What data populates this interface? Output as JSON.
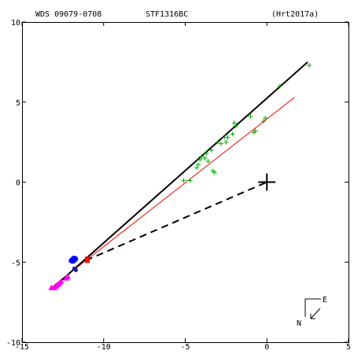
{
  "header": {
    "wds": "WDS 09079-0708",
    "name": "STF1316BC",
    "ref": "(Hrt2017a)"
  },
  "compass": {
    "east": "E",
    "north": "N"
  },
  "chart_data": {
    "type": "scatter",
    "xlim": [
      -15,
      5
    ],
    "ylim": [
      -10,
      10
    ],
    "x_ticks": [
      -15,
      -10,
      -5,
      0,
      5
    ],
    "y_ticks": [
      -10,
      -5,
      0,
      5,
      10
    ],
    "x_tick_labels": [
      "-15",
      "-10",
      "-5",
      "0",
      "5"
    ],
    "y_tick_labels": [
      "-10",
      "-5",
      "0",
      "5",
      "10"
    ],
    "grid": false,
    "colors": {
      "black": "#000000",
      "red": "#ff0000",
      "green": "#00aa00",
      "blue": "#0000ff",
      "magenta": "#ff00ff"
    },
    "primary": [
      0,
      0
    ],
    "black_line": [
      [
        -13.1,
        -6.6
      ],
      [
        2.5,
        7.5
      ]
    ],
    "red_line": [
      [
        -13.1,
        -6.5
      ],
      [
        1.7,
        5.3
      ]
    ],
    "dashed_line": [
      [
        -11.1,
        -4.9
      ],
      [
        0,
        0
      ]
    ],
    "green_points": [
      [
        -5.1,
        0.1
      ],
      [
        -4.7,
        0.1
      ],
      [
        -4.3,
        0.9
      ],
      [
        -4.2,
        1.1
      ],
      [
        -4.1,
        1.4
      ],
      [
        -4.0,
        1.6
      ],
      [
        -3.8,
        1.5
      ],
      [
        -3.7,
        1.8
      ],
      [
        -3.6,
        1.3
      ],
      [
        -3.4,
        2.0
      ],
      [
        -3.3,
        0.7
      ],
      [
        -3.2,
        0.6
      ],
      [
        -3.0,
        2.5
      ],
      [
        -2.8,
        2.4
      ],
      [
        -2.6,
        2.8
      ],
      [
        -2.5,
        2.5
      ],
      [
        -2.4,
        2.8
      ],
      [
        -2.1,
        3.0
      ],
      [
        -2.0,
        3.7
      ],
      [
        -1.9,
        3.5
      ],
      [
        -1.0,
        4.1
      ],
      [
        -0.8,
        3.1
      ],
      [
        -0.7,
        3.2
      ],
      [
        -0.2,
        3.8
      ],
      [
        -0.1,
        4.0
      ],
      [
        0.8,
        6.0
      ],
      [
        2.6,
        7.3
      ]
    ],
    "blue_points": [
      [
        -11.9,
        -4.9
      ],
      [
        -11.8,
        -4.8
      ]
    ],
    "blue_small_points": [
      [
        -11.8,
        -5.4
      ],
      [
        -11.7,
        -5.5
      ]
    ],
    "red_points": [
      [
        -11.0,
        -4.8
      ],
      [
        -11.0,
        -4.9
      ]
    ],
    "magenta_points": [
      [
        -13.2,
        -6.6
      ],
      [
        -13.0,
        -6.6
      ],
      [
        -12.9,
        -6.5
      ],
      [
        -12.8,
        -6.4
      ],
      [
        -12.7,
        -6.3
      ],
      [
        -12.6,
        -6.2
      ],
      [
        -12.3,
        -6.0
      ],
      [
        -12.2,
        -5.9
      ]
    ]
  }
}
